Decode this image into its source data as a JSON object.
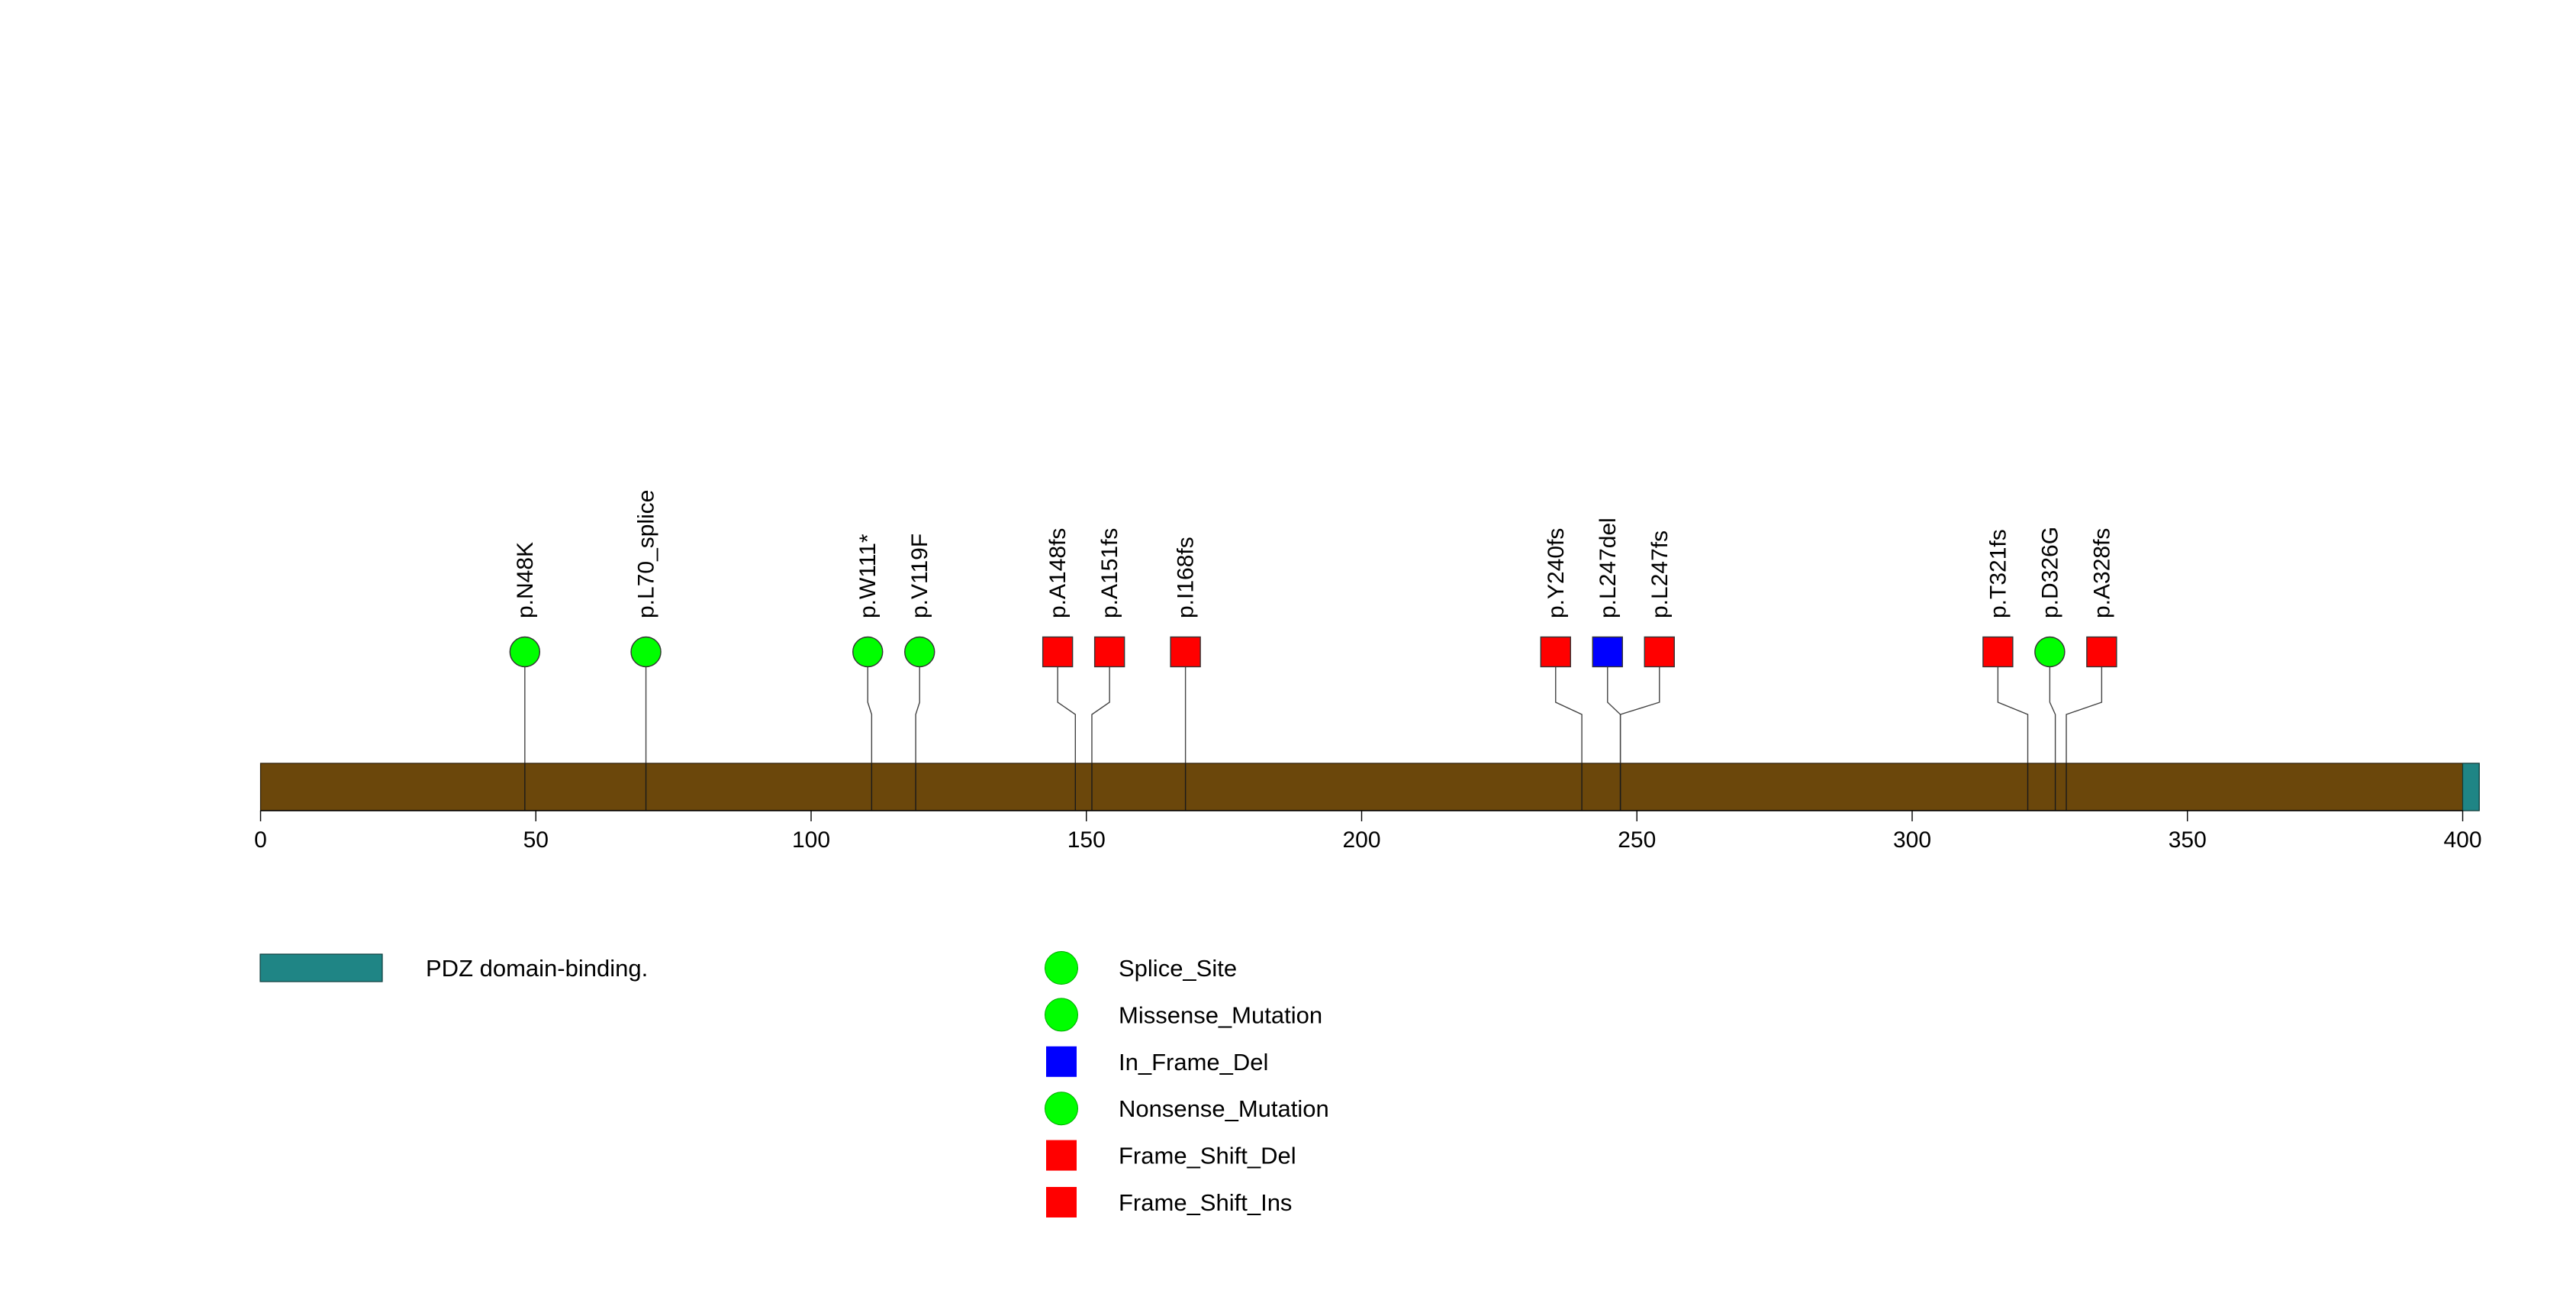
{
  "chart_data": {
    "type": "lollipop",
    "protein_length": 403,
    "xlim": [
      0,
      403
    ],
    "x_ticks": [
      0,
      50,
      100,
      150,
      200,
      250,
      300,
      350,
      400
    ],
    "x_tick_labels": [
      "0",
      "50",
      "100",
      "150",
      "200",
      "250",
      "300",
      "350",
      "400"
    ],
    "protein_color": "#6b470b",
    "domains": [
      {
        "name": "PDZ domain-binding.",
        "start": 400,
        "end": 403,
        "color": "#1f8585"
      }
    ],
    "mutations": [
      {
        "label": "p.N48K",
        "position": 48,
        "type": "Missense_Mutation"
      },
      {
        "label": "p.L70_splice",
        "position": 70,
        "type": "Splice_Site"
      },
      {
        "label": "p.W111*",
        "position": 111,
        "type": "Nonsense_Mutation"
      },
      {
        "label": "p.V119F",
        "position": 119,
        "type": "Missense_Mutation"
      },
      {
        "label": "p.A148fs",
        "position": 148,
        "type": "Frame_Shift_Del"
      },
      {
        "label": "p.A151fs",
        "position": 151,
        "type": "Frame_Shift_Del"
      },
      {
        "label": "p.I168fs",
        "position": 168,
        "type": "Frame_Shift_Del"
      },
      {
        "label": "p.Y240fs",
        "position": 240,
        "type": "Frame_Shift_Del"
      },
      {
        "label": "p.L247del",
        "position": 247,
        "type": "In_Frame_Del"
      },
      {
        "label": "p.L247fs",
        "position": 247,
        "type": "Frame_Shift_Del"
      },
      {
        "label": "p.T321fs",
        "position": 321,
        "type": "Frame_Shift_Del"
      },
      {
        "label": "p.D326G",
        "position": 326,
        "type": "Missense_Mutation"
      },
      {
        "label": "p.A328fs",
        "position": 328,
        "type": "Frame_Shift_Del"
      }
    ],
    "mutation_types": [
      {
        "name": "Splice_Site",
        "shape": "circle",
        "color": "#00ff00"
      },
      {
        "name": "Missense_Mutation",
        "shape": "circle",
        "color": "#00ff00"
      },
      {
        "name": "In_Frame_Del",
        "shape": "square",
        "color": "#0000ff"
      },
      {
        "name": "Nonsense_Mutation",
        "shape": "circle",
        "color": "#00ff00"
      },
      {
        "name": "Frame_Shift_Del",
        "shape": "square",
        "color": "#ff0000"
      },
      {
        "name": "Frame_Shift_Ins",
        "shape": "square",
        "color": "#ff0000"
      }
    ],
    "legend_placement": "bottom"
  }
}
